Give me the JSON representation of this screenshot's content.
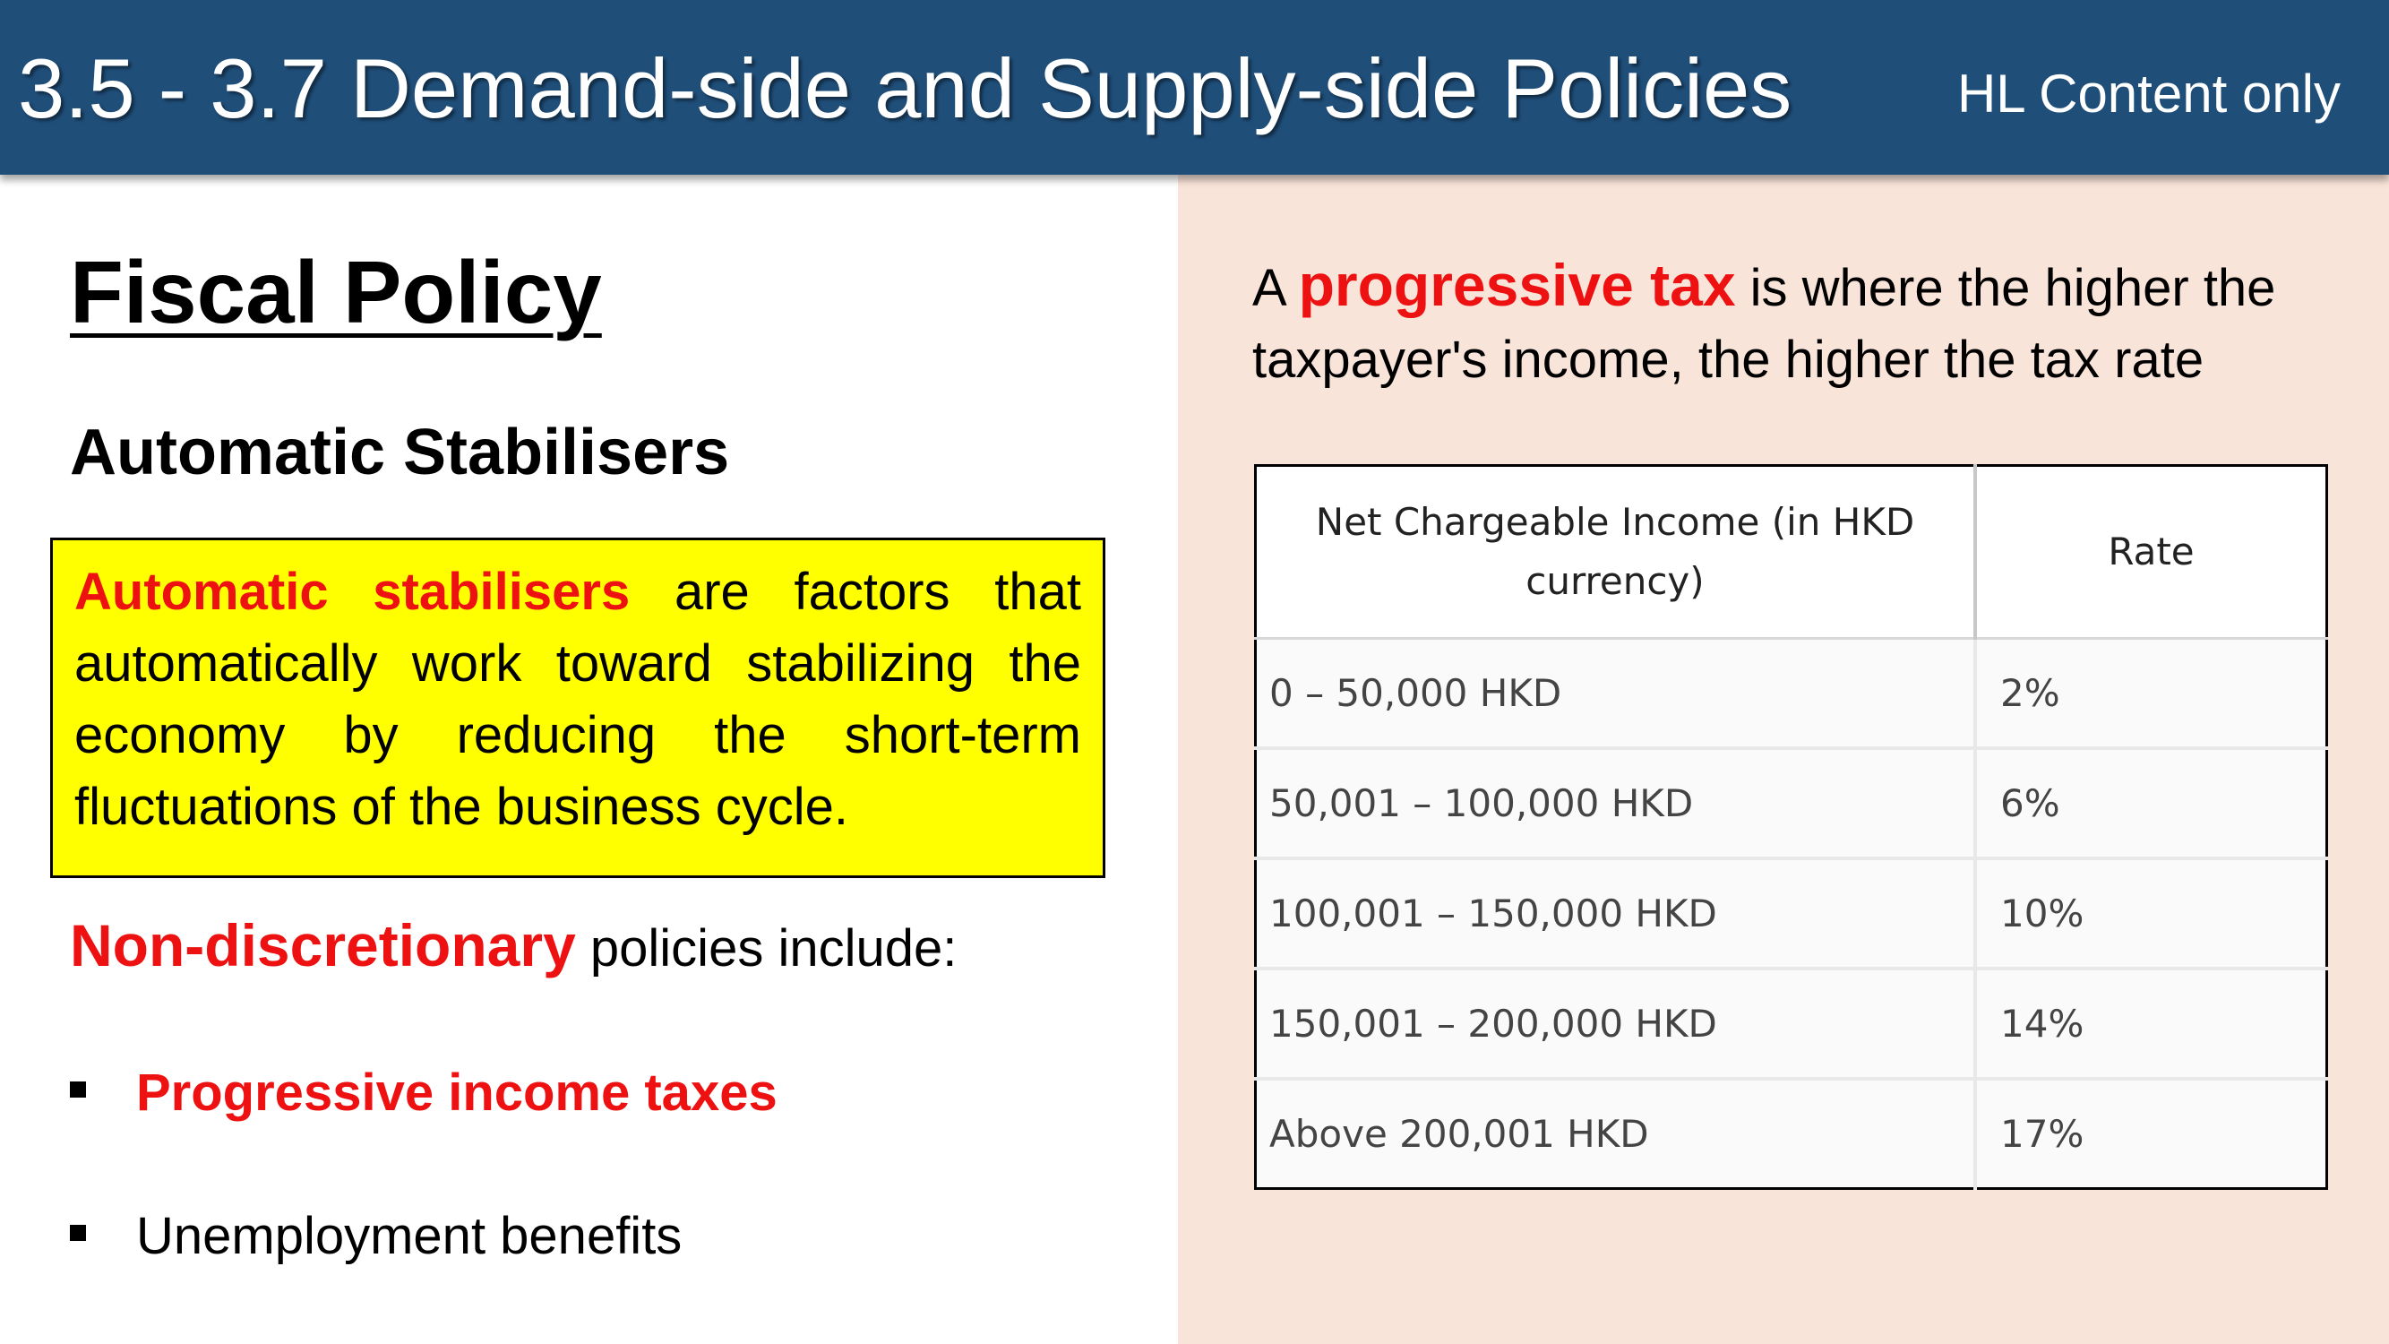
{
  "header": {
    "title": "3.5 - 3.7 Demand-side and Supply-side Policies",
    "note": "HL Content only"
  },
  "left": {
    "section_title": "Fiscal Policy",
    "subsection_title": "Automatic Stabilisers",
    "definition": {
      "term": "Automatic stabilisers",
      "text": " are factors that automatically work toward stabilizing the economy by reducing the short-term fluctuations  of the business cycle."
    },
    "policies_intro": {
      "term": "Non-discretionary",
      "text": " policies include:"
    },
    "policies": [
      "Progressive income taxes",
      "Unemployment benefits"
    ]
  },
  "right": {
    "tax_definition": {
      "prefix": "A ",
      "term": "progressive tax",
      "text": " is where the higher the taxpayer's income, the higher the tax rate"
    },
    "table": {
      "headers": [
        "Net Chargeable Income (in HKD currency)",
        "Rate"
      ],
      "rows": [
        {
          "income": "0 – 50,000 HKD",
          "rate": "2%"
        },
        {
          "income": "50,001 – 100,000 HKD",
          "rate": "6%"
        },
        {
          "income": "100,001 – 150,000 HKD",
          "rate": "10%"
        },
        {
          "income": "150,001 – 200,000 HKD",
          "rate": "14%"
        },
        {
          "income": " Above 200,001 HKD",
          "rate": "17%"
        }
      ]
    }
  },
  "colors": {
    "header_bg": "#1f4e79",
    "right_panel_bg": "#f9e4d9",
    "highlight_box": "#ffff00",
    "accent_red": "#ee1111"
  }
}
